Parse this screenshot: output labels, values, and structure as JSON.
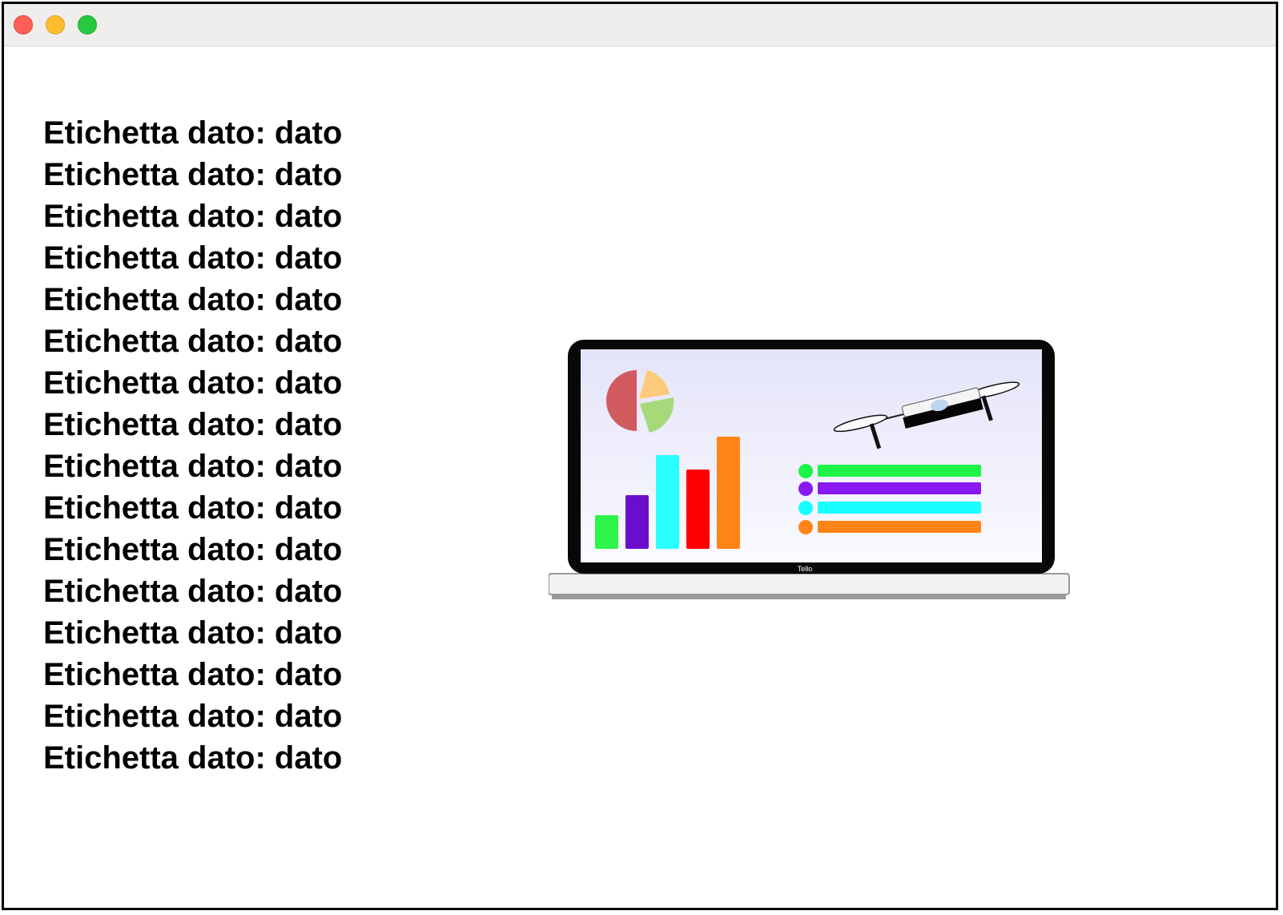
{
  "window": {
    "controls": [
      {
        "name": "close",
        "color": "#fe5f57"
      },
      {
        "name": "minimize",
        "color": "#febc2e"
      },
      {
        "name": "maximize",
        "color": "#28c840"
      }
    ]
  },
  "labels": [
    "Etichetta dato: dato",
    "Etichetta dato: dato",
    "Etichetta dato: dato",
    "Etichetta dato: dato",
    "Etichetta dato: dato",
    "Etichetta dato: dato",
    "Etichetta dato: dato",
    "Etichetta dato: dato",
    "Etichetta dato: dato",
    "Etichetta dato: dato",
    "Etichetta dato: dato",
    "Etichetta dato: dato",
    "Etichetta dato: dato",
    "Etichetta dato: dato",
    "Etichetta dato: dato",
    "Etichetta dato: dato"
  ],
  "illustration": {
    "laptop_brand": "Tello",
    "icons": [
      "laptop-icon",
      "pie-chart-icon",
      "bar-chart-icon",
      "legend-list-icon",
      "drone-icon"
    ],
    "bar_colors": [
      "#2ef54a",
      "#6a0ecc",
      "#2affff",
      "#ff0000",
      "#ff8418"
    ],
    "legend_colors": [
      "#1cf545",
      "#8a18f0",
      "#18ffff",
      "#ff8418"
    ],
    "pie_colors": [
      "#d05a5e",
      "#fec97a",
      "#a6d97a"
    ]
  }
}
